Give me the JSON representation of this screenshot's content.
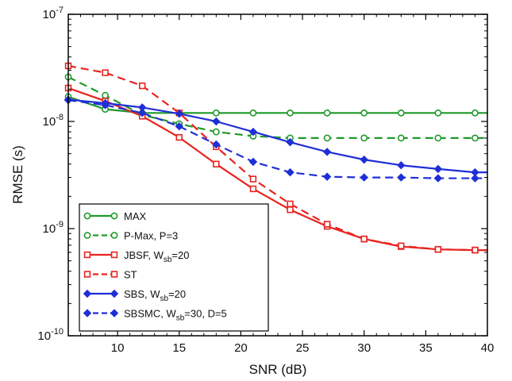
{
  "chart_data": {
    "type": "line",
    "xlabel": "SNR (dB)",
    "ylabel": "RMSE (s)",
    "xlim": [
      6,
      40
    ],
    "ylim": [
      1e-10,
      1e-07
    ],
    "yscale": "log",
    "grid": false,
    "legend_position": "bottom-left",
    "x_ticks": [
      10,
      15,
      20,
      25,
      30,
      35,
      40
    ],
    "x_tick_labels": [
      "10",
      "15",
      "20",
      "25",
      "30",
      "35",
      "40"
    ],
    "y_ticks": [
      1e-10,
      1e-09,
      1e-08,
      1e-07
    ],
    "y_tick_labels": [
      {
        "base": "10",
        "exp": "-10"
      },
      {
        "base": "10",
        "exp": "-9"
      },
      {
        "base": "10",
        "exp": "-8"
      },
      {
        "base": "10",
        "exp": "-7"
      }
    ],
    "x": [
      6,
      9,
      12,
      15,
      18,
      21,
      24,
      27,
      30,
      33,
      36,
      39
    ],
    "series": [
      {
        "name": "MAX",
        "legend": {
          "main": "MAX",
          "sub": "",
          "tail": ""
        },
        "color": "#1f9a2a",
        "dash": "solid",
        "marker": "circle",
        "values": [
          1.7e-08,
          1.3e-08,
          1.2e-08,
          1.2e-08,
          1.2e-08,
          1.2e-08,
          1.2e-08,
          1.2e-08,
          1.2e-08,
          1.2e-08,
          1.2e-08,
          1.2e-08
        ]
      },
      {
        "name": "P-Max, P=3",
        "legend": {
          "main": "P-Max, P=3",
          "sub": "",
          "tail": ""
        },
        "color": "#1f9a2a",
        "dash": "dashed",
        "marker": "circle",
        "values": [
          2.6e-08,
          1.75e-08,
          1.15e-08,
          9.5e-09,
          8e-09,
          7.3e-09,
          7e-09,
          7e-09,
          7e-09,
          7e-09,
          7e-09,
          7e-09
        ]
      },
      {
        "name": "JBSF, Wsb=20",
        "legend": {
          "main": "JBSF, W",
          "sub": "sb",
          "tail": "=20"
        },
        "color": "#e8231f",
        "dash": "solid",
        "marker": "square",
        "values": [
          2.05e-08,
          1.55e-08,
          1.12e-08,
          7.1e-09,
          4e-09,
          2.35e-09,
          1.5e-09,
          1.05e-09,
          8e-10,
          6.8e-10,
          6.4e-10,
          6.3e-10
        ]
      },
      {
        "name": "ST",
        "legend": {
          "main": "ST",
          "sub": "",
          "tail": ""
        },
        "color": "#e8231f",
        "dash": "dashed",
        "marker": "square",
        "values": [
          3.3e-08,
          2.85e-08,
          2.15e-08,
          1.2e-08,
          5.8e-09,
          2.9e-09,
          1.7e-09,
          1.1e-09,
          8e-10,
          6.9e-10,
          6.4e-10,
          6.3e-10
        ]
      },
      {
        "name": "SBS, Wsb=20",
        "legend": {
          "main": "SBS, W",
          "sub": "sb",
          "tail": "=20"
        },
        "color": "#1f2fd6",
        "dash": "solid",
        "marker": "diamond",
        "values": [
          1.6e-08,
          1.48e-08,
          1.35e-08,
          1.18e-08,
          1e-08,
          8e-09,
          6.4e-09,
          5.2e-09,
          4.4e-09,
          3.9e-09,
          3.6e-09,
          3.35e-09
        ]
      },
      {
        "name": "SBSMC, Wsb=30, D=5",
        "legend": {
          "main": "SBSMC, W",
          "sub": "sb",
          "tail": "=30, D=5"
        },
        "color": "#1f2fd6",
        "dash": "dashed",
        "marker": "diamond",
        "values": [
          1.58e-08,
          1.42e-08,
          1.2e-08,
          9e-09,
          6.1e-09,
          4.2e-09,
          3.35e-09,
          3.05e-09,
          3e-09,
          3e-09,
          2.95e-09,
          2.95e-09
        ]
      }
    ]
  }
}
